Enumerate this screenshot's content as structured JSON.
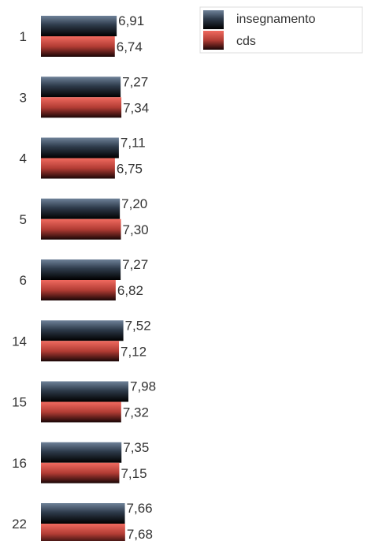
{
  "chart_data": {
    "type": "bar",
    "orientation": "horizontal",
    "categories": [
      "1",
      "3",
      "4",
      "5",
      "6",
      "14",
      "15",
      "16",
      "22"
    ],
    "series": [
      {
        "name": "insegnamento",
        "values": [
          6.91,
          7.27,
          7.11,
          7.2,
          7.27,
          7.52,
          7.98,
          7.35,
          7.66
        ],
        "labels": [
          "6,91",
          "7,27",
          "7,11",
          "7,20",
          "7,27",
          "7,52",
          "7,98",
          "7,35",
          "7,66"
        ],
        "color": "#3a4a5c"
      },
      {
        "name": "cds",
        "values": [
          6.74,
          7.34,
          6.75,
          7.3,
          6.82,
          7.12,
          7.32,
          7.15,
          7.68
        ],
        "labels": [
          "6,74",
          "7,34",
          "6,75",
          "7,30",
          "6,82",
          "7,12",
          "7,32",
          "7,15",
          "7,68"
        ],
        "color": "#c0463e"
      }
    ],
    "legend_position": "top-right",
    "grid": false
  }
}
